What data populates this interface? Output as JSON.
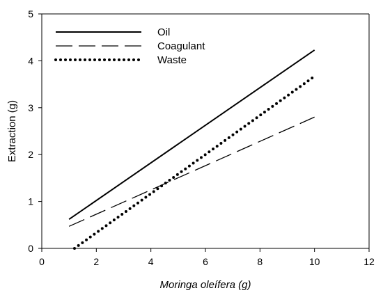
{
  "chart_data": {
    "type": "line",
    "xlabel": "Moringa oleífera (g)",
    "ylabel": "Extraction (g)",
    "xlim": [
      0,
      12
    ],
    "ylim": [
      0,
      5
    ],
    "x_ticks": [
      "0",
      "2",
      "4",
      "6",
      "8",
      "10",
      "12"
    ],
    "y_ticks": [
      "0",
      "1",
      "2",
      "3",
      "4",
      "5"
    ],
    "grid": false,
    "legend_position": "top-left",
    "series": [
      {
        "name": "Oil",
        "style": "solid",
        "x": [
          1,
          10
        ],
        "y": [
          0.62,
          4.23
        ]
      },
      {
        "name": "Coagulant",
        "style": "dashed",
        "x": [
          1,
          10
        ],
        "y": [
          0.47,
          2.8
        ]
      },
      {
        "name": "Waste",
        "style": "dotted",
        "x": [
          1.2,
          10
        ],
        "y": [
          0.0,
          3.67
        ]
      }
    ]
  }
}
